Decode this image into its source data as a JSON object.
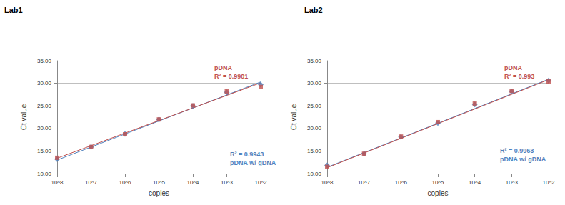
{
  "chart_data": [
    {
      "type": "scatter",
      "title": "Lab1",
      "x_label": "copies",
      "y_label": "Ct value",
      "categories": [
        "10^8",
        "10^7",
        "10^6",
        "10^5",
        "10^4",
        "10^3",
        "10^2"
      ],
      "ylim": [
        10,
        35
      ],
      "yticks": [
        {
          "value": 10,
          "label": "10.00"
        },
        {
          "value": 15,
          "label": "15.00"
        },
        {
          "value": 20,
          "label": "20.00"
        },
        {
          "value": 25,
          "label": "25.00"
        },
        {
          "value": 30,
          "label": "30.00"
        },
        {
          "value": 35,
          "label": "35.00"
        }
      ],
      "grid": true,
      "series": [
        {
          "name": "pDNA w/ gDNA",
          "color": "#4f81bd",
          "marker": "diamond",
          "values": [
            13.2,
            15.9,
            18.8,
            22.0,
            25.0,
            28.0,
            29.7
          ],
          "trendline": [
            13.0,
            30.3
          ],
          "r_squared": "R² = 0.9943"
        },
        {
          "name": "pDNA",
          "color": "#c0504d",
          "marker": "square",
          "values": [
            13.5,
            15.9,
            18.7,
            22.0,
            25.1,
            28.2,
            29.2
          ],
          "trendline": [
            13.4,
            30.1
          ],
          "r_squared": "R² = 0.9901"
        }
      ]
    },
    {
      "type": "scatter",
      "title": "Lab2",
      "x_label": "copies",
      "y_label": "Ct value",
      "categories": [
        "10^8",
        "10^7",
        "10^6",
        "10^5",
        "10^4",
        "10^3",
        "10^2"
      ],
      "ylim": [
        10,
        35
      ],
      "yticks": [
        {
          "value": 10,
          "label": "10.00"
        },
        {
          "value": 15,
          "label": "15.00"
        },
        {
          "value": 20,
          "label": "20.00"
        },
        {
          "value": 25,
          "label": "25.00"
        },
        {
          "value": 30,
          "label": "30.00"
        },
        {
          "value": 35,
          "label": "35.00"
        }
      ],
      "grid": true,
      "series": [
        {
          "name": "pDNA w/ gDNA",
          "color": "#4f81bd",
          "marker": "diamond",
          "values": [
            11.8,
            14.4,
            18.1,
            21.2,
            25.3,
            28.2,
            30.6
          ],
          "trendline": [
            11.4,
            30.9
          ],
          "r_squared": "R² = 0.9963"
        },
        {
          "name": "pDNA",
          "color": "#c0504d",
          "marker": "square",
          "values": [
            11.5,
            14.4,
            18.2,
            21.4,
            25.5,
            28.3,
            30.4
          ],
          "trendline": [
            11.3,
            30.8
          ],
          "r_squared": "R² = 0.993"
        }
      ]
    }
  ]
}
